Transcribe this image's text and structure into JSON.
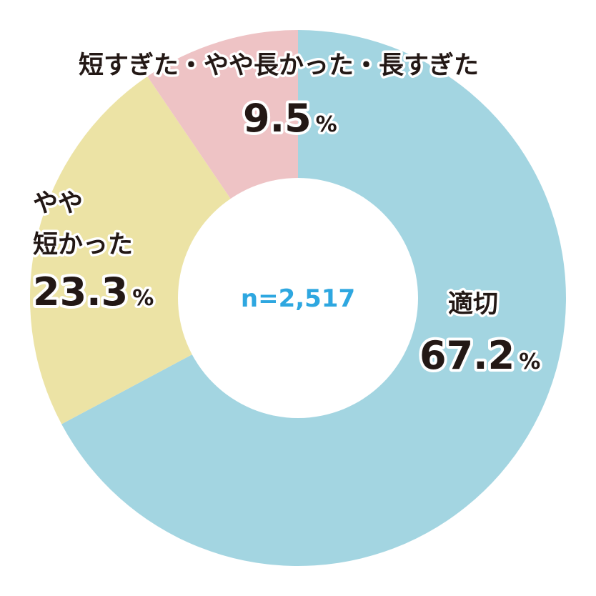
{
  "chart_data": {
    "type": "pie",
    "variant": "donut",
    "title": "",
    "center_label": "n=2,517",
    "categories": [
      "適切",
      "やや短かった",
      "短すぎた・やや長かった・長すぎた"
    ],
    "values": [
      67.2,
      23.3,
      9.5
    ],
    "unit": "%",
    "slices": [
      {
        "label_lines": [
          "適切"
        ],
        "value": 67.2,
        "value_text": "67.2",
        "unit": "%",
        "color": "#a3d5e1"
      },
      {
        "label_lines": [
          "やや",
          "短かった"
        ],
        "value": 23.3,
        "value_text": "23.3",
        "unit": "%",
        "color": "#ece3a5"
      },
      {
        "label_lines": [
          "短すぎた・やや長かった・長すぎた"
        ],
        "value": 9.5,
        "value_text": "9.5",
        "unit": "%",
        "color": "#eec3c5"
      }
    ],
    "start_angle": "12 o'clock",
    "direction": "clockwise",
    "legend": "none",
    "center_color": "#2ea7e0"
  }
}
